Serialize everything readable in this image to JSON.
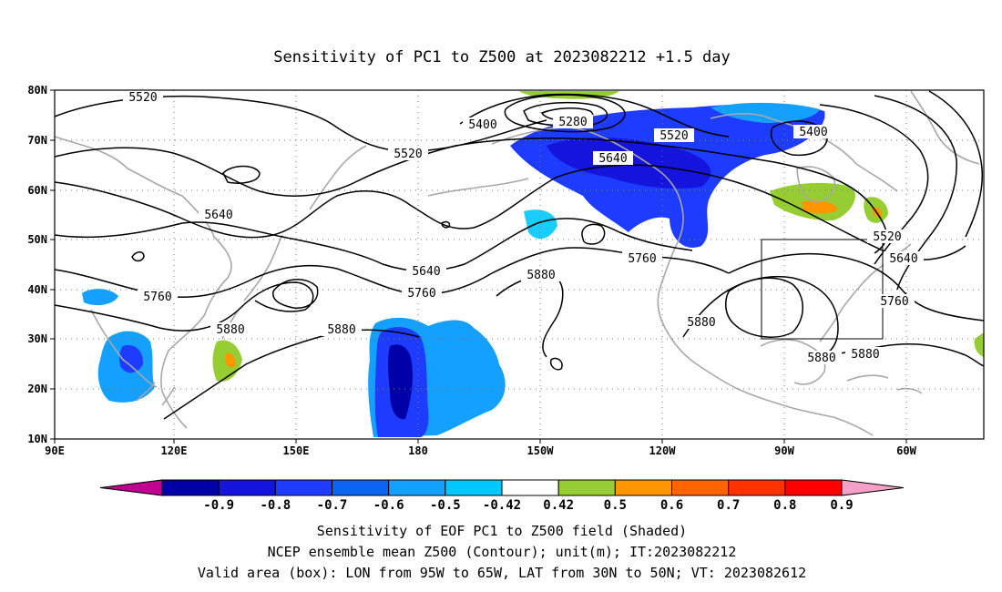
{
  "title": "Sensitivity of PC1 to Z500 at 2023082212 +1.5 day",
  "map": {
    "lon_range": [
      "90E",
      "50W"
    ],
    "lat_range": [
      "10N",
      "80N"
    ],
    "lon_ticks": [
      "90E",
      "120E",
      "150E",
      "180",
      "150W",
      "120W",
      "90W",
      "60W"
    ],
    "lat_ticks": [
      "80N",
      "70N",
      "60N",
      "50N",
      "40N",
      "30N",
      "20N",
      "10N"
    ],
    "gridlines": "dotted",
    "contour_labels": [
      "5520",
      "5400",
      "5280",
      "5520",
      "5400",
      "5520",
      "5640",
      "5640",
      "5640",
      "5520",
      "5640",
      "5880",
      "5760",
      "5760",
      "5760",
      "5760",
      "5880",
      "5880",
      "5880",
      "5880",
      "5880"
    ],
    "valid_box": {
      "lon": [
        "95W",
        "65W"
      ],
      "lat": [
        "30N",
        "50N"
      ]
    }
  },
  "colorbar": {
    "labels": [
      "-0.9",
      "-0.8",
      "-0.7",
      "-0.6",
      "-0.5",
      "-0.42",
      "0.42",
      "0.5",
      "0.6",
      "0.7",
      "0.8",
      "0.9"
    ],
    "colors": [
      "#bf0090",
      "#0000a8",
      "#1414dc",
      "#1e3cff",
      "#0a64f0",
      "#14a0ff",
      "#00c8ff",
      "#ffffff",
      "#96cd32",
      "#ff9600",
      "#ff6400",
      "#ff3200",
      "#ff0000",
      "#f5a0c8"
    ]
  },
  "captions": [
    "Sensitivity of EOF PC1 to Z500 field (Shaded)",
    "NCEP ensemble mean Z500 (Contour); unit(m); IT:2023082212",
    "Valid area (box): LON from 95W to 65W, LAT from 30N to 50N; VT: 2023082612"
  ]
}
